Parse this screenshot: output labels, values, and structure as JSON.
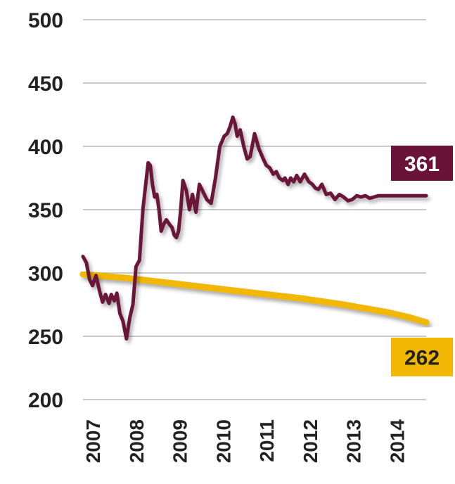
{
  "chart_data": {
    "type": "line",
    "title": "",
    "xlabel": "",
    "ylabel": "",
    "x_ticks": [
      "2007",
      "2008",
      "2009",
      "2010",
      "2011",
      "2012",
      "2013",
      "2014"
    ],
    "y_ticks": [
      500,
      450,
      400,
      350,
      300,
      250,
      200
    ],
    "xlim": [
      2007.0,
      2014.9
    ],
    "ylim": [
      200,
      500
    ],
    "grid": true,
    "series": [
      {
        "color": "#6b1238",
        "end_label": "361",
        "x": [
          2007.0,
          2007.08,
          2007.15,
          2007.22,
          2007.3,
          2007.38,
          2007.45,
          2007.52,
          2007.6,
          2007.65,
          2007.72,
          2007.78,
          2007.85,
          2007.92,
          2008.0,
          2008.08,
          2008.15,
          2008.22,
          2008.3,
          2008.38,
          2008.45,
          2008.5,
          2008.55,
          2008.6,
          2008.65,
          2008.7,
          2008.75,
          2008.8,
          2008.85,
          2008.92,
          2009.0,
          2009.05,
          2009.1,
          2009.15,
          2009.2,
          2009.25,
          2009.3,
          2009.38,
          2009.45,
          2009.52,
          2009.6,
          2009.68,
          2009.75,
          2009.85,
          2009.95,
          2010.05,
          2010.15,
          2010.25,
          2010.32,
          2010.38,
          2010.45,
          2010.5,
          2010.55,
          2010.62,
          2010.7,
          2010.78,
          2010.85,
          2010.95,
          2011.05,
          2011.15,
          2011.22,
          2011.3,
          2011.38,
          2011.45,
          2011.52,
          2011.6,
          2011.65,
          2011.72,
          2011.78,
          2011.85,
          2011.92,
          2012.0,
          2012.1,
          2012.2,
          2012.28,
          2012.35,
          2012.42,
          2012.5,
          2012.6,
          2012.7,
          2012.8,
          2012.9,
          2013.0,
          2013.1,
          2013.2,
          2013.3,
          2013.4,
          2013.5,
          2013.6,
          2013.7,
          2013.8,
          2013.9,
          2014.0,
          2014.1,
          2014.2,
          2014.3,
          2014.4,
          2014.5,
          2014.6,
          2014.7,
          2014.8,
          2014.9
        ],
        "values": [
          313,
          308,
          295,
          290,
          298,
          286,
          277,
          283,
          276,
          283,
          278,
          284,
          268,
          262,
          248,
          265,
          275,
          305,
          310,
          350,
          372,
          387,
          385,
          370,
          360,
          362,
          350,
          333,
          338,
          342,
          338,
          336,
          330,
          328,
          333,
          350,
          373,
          365,
          350,
          362,
          348,
          370,
          365,
          358,
          355,
          375,
          400,
          408,
          410,
          415,
          423,
          418,
          408,
          413,
          400,
          390,
          392,
          410,
          398,
          390,
          385,
          383,
          378,
          380,
          375,
          373,
          375,
          370,
          375,
          372,
          377,
          372,
          378,
          372,
          370,
          367,
          366,
          370,
          362,
          363,
          358,
          362,
          360,
          357,
          358,
          361,
          360,
          361,
          359,
          360,
          361,
          361,
          361,
          361,
          361,
          361,
          361,
          361,
          361,
          361,
          361,
          361
        ]
      },
      {
        "color": "#f2b705",
        "end_label": "262",
        "x": [
          2007.0,
          2008.0,
          2009.0,
          2010.0,
          2011.0,
          2012.0,
          2013.0,
          2014.0,
          2014.5,
          2014.9
        ],
        "values": [
          299,
          296,
          292,
          288,
          284,
          280,
          275,
          269,
          265,
          261
        ]
      }
    ]
  }
}
